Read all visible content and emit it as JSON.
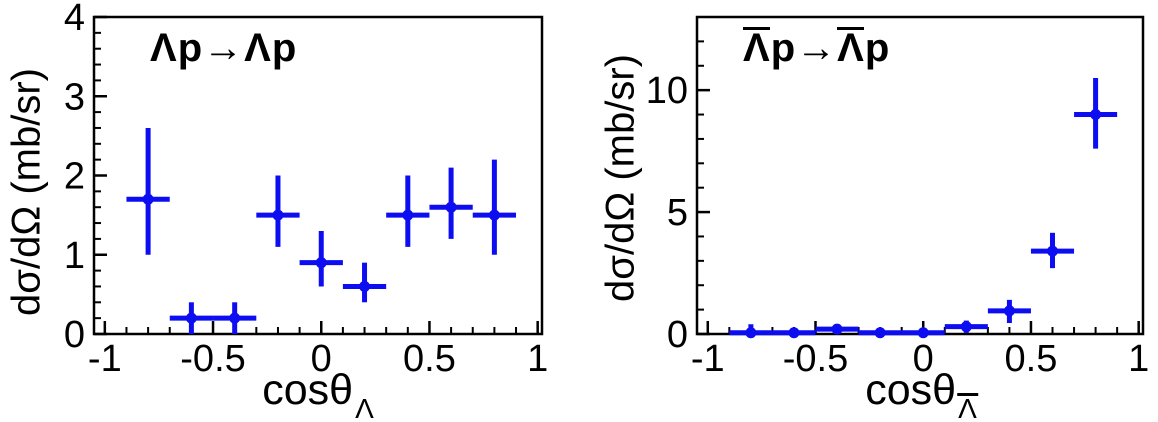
{
  "figure": {
    "background_color": "#ffffff",
    "axis_color": "#000000"
  },
  "chart_data": [
    {
      "type": "scatter",
      "reaction_label": {
        "tokens": [
          {
            "text": "Λ",
            "overline": false
          },
          {
            "text": "p",
            "overline": false
          },
          {
            "text": "→",
            "overline": false
          },
          {
            "text": "Λ",
            "overline": false
          },
          {
            "text": "p",
            "overline": false
          }
        ]
      },
      "ylabel": "dσ/dΩ (mb/sr)",
      "xlabel": {
        "main": "cosθ",
        "sub": "Λ",
        "sub_overline": false
      },
      "xlim": [
        -1.05,
        1.02
      ],
      "ylim": [
        0,
        4
      ],
      "xticks": [
        {
          "v": -1,
          "label": "-1"
        },
        {
          "v": -0.5,
          "label": "-0.5"
        },
        {
          "v": 0,
          "label": "0"
        },
        {
          "v": 0.5,
          "label": "0.5"
        },
        {
          "v": 1,
          "label": "1"
        }
      ],
      "yticks": [
        {
          "v": 0,
          "label": "0"
        },
        {
          "v": 1,
          "label": "1"
        },
        {
          "v": 2,
          "label": "2"
        },
        {
          "v": 3,
          "label": "3"
        },
        {
          "v": 4,
          "label": "4"
        }
      ],
      "x_minor_step": 0.1,
      "y_minor_step": 0.2,
      "grid": false,
      "legend": false,
      "marker_color": "#0d0df2",
      "points": [
        {
          "x": -0.8,
          "y": 1.7,
          "xerr": 0.1,
          "yerr_low": 0.7,
          "yerr_high": 0.9
        },
        {
          "x": -0.6,
          "y": 0.2,
          "xerr": 0.1,
          "yerr_low": 0.2,
          "yerr_high": 0.2
        },
        {
          "x": -0.4,
          "y": 0.2,
          "xerr": 0.1,
          "yerr_low": 0.2,
          "yerr_high": 0.2
        },
        {
          "x": -0.2,
          "y": 1.5,
          "xerr": 0.1,
          "yerr_low": 0.4,
          "yerr_high": 0.5
        },
        {
          "x": 0.0,
          "y": 0.9,
          "xerr": 0.1,
          "yerr_low": 0.3,
          "yerr_high": 0.4
        },
        {
          "x": 0.2,
          "y": 0.6,
          "xerr": 0.1,
          "yerr_low": 0.2,
          "yerr_high": 0.3
        },
        {
          "x": 0.4,
          "y": 1.5,
          "xerr": 0.1,
          "yerr_low": 0.4,
          "yerr_high": 0.5
        },
        {
          "x": 0.6,
          "y": 1.6,
          "xerr": 0.1,
          "yerr_low": 0.4,
          "yerr_high": 0.5
        },
        {
          "x": 0.8,
          "y": 1.5,
          "xerr": 0.1,
          "yerr_low": 0.5,
          "yerr_high": 0.7
        }
      ]
    },
    {
      "type": "scatter",
      "reaction_label": {
        "tokens": [
          {
            "text": "Λ",
            "overline": true
          },
          {
            "text": "p",
            "overline": false
          },
          {
            "text": "→",
            "overline": false
          },
          {
            "text": "Λ",
            "overline": true
          },
          {
            "text": "p",
            "overline": false
          }
        ]
      },
      "ylabel": "dσ/dΩ (mb/sr)",
      "xlabel": {
        "main": "cosθ",
        "sub": "Λ",
        "sub_overline": true
      },
      "xlim": [
        -1.05,
        1.02
      ],
      "ylim": [
        0,
        13
      ],
      "xticks": [
        {
          "v": -1,
          "label": "-1"
        },
        {
          "v": -0.5,
          "label": "-0.5"
        },
        {
          "v": 0,
          "label": "0"
        },
        {
          "v": 0.5,
          "label": "0.5"
        },
        {
          "v": 1,
          "label": "1"
        }
      ],
      "yticks": [
        {
          "v": 0,
          "label": "0"
        },
        {
          "v": 5,
          "label": "5"
        },
        {
          "v": 10,
          "label": "10"
        }
      ],
      "x_minor_step": 0.1,
      "y_minor_step": 1,
      "grid": false,
      "legend": false,
      "marker_color": "#0d0df2",
      "points": [
        {
          "x": -0.8,
          "y": 0.05,
          "xerr": 0.1,
          "yerr_low": 0.05,
          "yerr_high": 0.35
        },
        {
          "x": -0.6,
          "y": 0.05,
          "xerr": 0.1,
          "yerr_low": 0.05,
          "yerr_high": 0.15
        },
        {
          "x": -0.4,
          "y": 0.2,
          "xerr": 0.1,
          "yerr_low": 0.15,
          "yerr_high": 0.2
        },
        {
          "x": -0.2,
          "y": 0.05,
          "xerr": 0.1,
          "yerr_low": 0.05,
          "yerr_high": 0.1
        },
        {
          "x": 0.0,
          "y": 0.05,
          "xerr": 0.1,
          "yerr_low": 0.05,
          "yerr_high": 0.15
        },
        {
          "x": 0.2,
          "y": 0.3,
          "xerr": 0.1,
          "yerr_low": 0.25,
          "yerr_high": 0.25
        },
        {
          "x": 0.4,
          "y": 0.95,
          "xerr": 0.1,
          "yerr_low": 0.5,
          "yerr_high": 0.45
        },
        {
          "x": 0.6,
          "y": 3.4,
          "xerr": 0.1,
          "yerr_low": 0.7,
          "yerr_high": 0.75
        },
        {
          "x": 0.8,
          "y": 9.0,
          "xerr": 0.1,
          "yerr_low": 1.4,
          "yerr_high": 1.5
        }
      ]
    }
  ]
}
